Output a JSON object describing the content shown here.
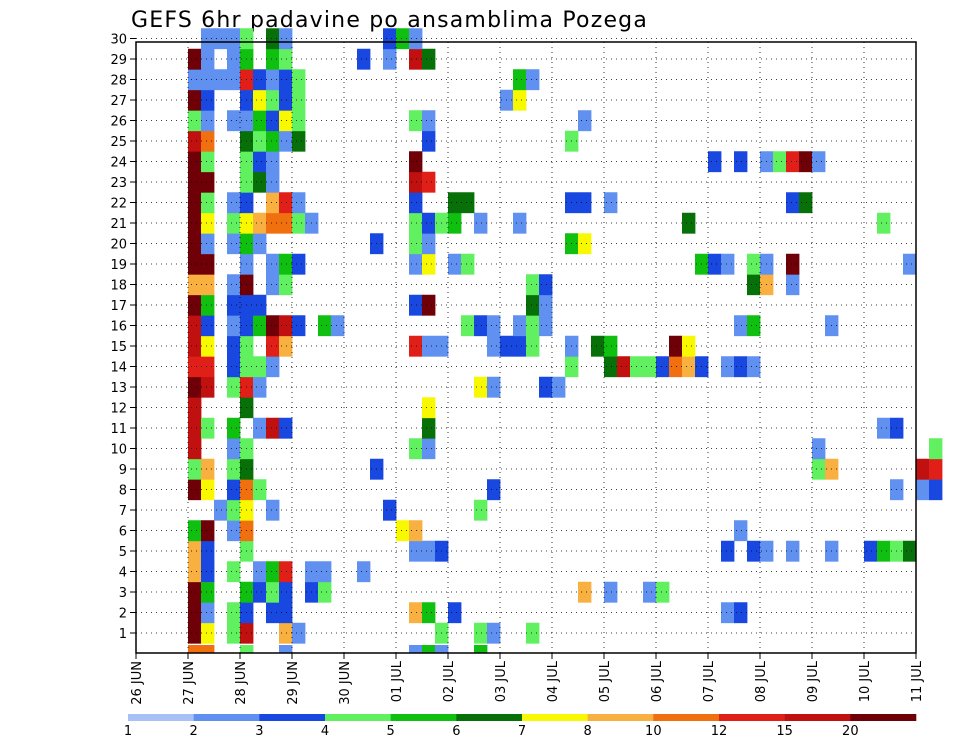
{
  "chart_data": {
    "type": "heatmap",
    "title": "GEFS 6hr padavine po ansamblima Pozega",
    "x_ticks": [
      "26 JUN",
      "27 JUN",
      "28 JUN",
      "29 JUN",
      "30 JUN",
      "01 JUL",
      "02 JUL",
      "03 JUL",
      "04 JUL",
      "05 JUL",
      "06 JUL",
      "07 JUL",
      "08 JUL",
      "09 JUL",
      "10 JUL",
      "11 JUL"
    ],
    "y_ticks": [
      "1",
      "2",
      "3",
      "4",
      "5",
      "6",
      "7",
      "8",
      "9",
      "10",
      "11",
      "12",
      "13",
      "14",
      "15",
      "16",
      "17",
      "18",
      "19",
      "20",
      "21",
      "22",
      "23",
      "24",
      "25",
      "26",
      "27",
      "28",
      "29",
      "30"
    ],
    "x_unit": "6-hour step from 26 JUN 00Z",
    "y_unit": "ensemble member",
    "grid": true,
    "levels": [
      {
        "label": "1",
        "color": "#a8c0f8"
      },
      {
        "label": "2",
        "color": "#6090f0"
      },
      {
        "label": "3",
        "color": "#1848e0"
      },
      {
        "label": "4",
        "color": "#60f060"
      },
      {
        "label": "5",
        "color": "#10c010"
      },
      {
        "label": "6",
        "color": "#087008"
      },
      {
        "label": "7",
        "color": "#f8f800"
      },
      {
        "label": "8",
        "color": "#f8b040"
      },
      {
        "label": "10",
        "color": "#f07010"
      },
      {
        "label": "12",
        "color": "#e02018"
      },
      {
        "label": "15",
        "color": "#c01010"
      },
      {
        "label": "20",
        "color": "#700008"
      }
    ],
    "cells": [
      [
        4,
        1,
        11
      ],
      [
        5,
        1,
        6
      ],
      [
        7,
        1,
        3
      ],
      [
        8,
        1,
        10
      ],
      [
        11,
        1,
        7
      ],
      [
        12,
        1,
        1
      ],
      [
        23,
        1,
        3
      ],
      [
        26,
        1,
        3
      ],
      [
        27,
        1,
        1
      ],
      [
        30,
        1,
        3
      ],
      [
        4,
        2,
        11
      ],
      [
        5,
        2,
        1
      ],
      [
        7,
        2,
        3
      ],
      [
        8,
        2,
        2
      ],
      [
        10,
        2,
        2
      ],
      [
        11,
        2,
        2
      ],
      [
        21,
        2,
        7
      ],
      [
        22,
        2,
        4
      ],
      [
        24,
        2,
        2
      ],
      [
        45,
        2,
        1
      ],
      [
        46,
        2,
        2
      ],
      [
        4,
        3,
        11
      ],
      [
        5,
        3,
        4
      ],
      [
        8,
        3,
        4
      ],
      [
        9,
        3,
        2
      ],
      [
        10,
        3,
        3
      ],
      [
        11,
        3,
        2
      ],
      [
        13,
        3,
        2
      ],
      [
        14,
        3,
        3
      ],
      [
        34,
        3,
        7
      ],
      [
        36,
        3,
        1
      ],
      [
        39,
        3,
        1
      ],
      [
        40,
        3,
        3
      ],
      [
        4,
        4,
        7
      ],
      [
        5,
        4,
        3
      ],
      [
        7,
        4,
        3
      ],
      [
        9,
        4,
        1
      ],
      [
        10,
        4,
        4
      ],
      [
        11,
        4,
        9
      ],
      [
        13,
        4,
        1
      ],
      [
        14,
        4,
        1
      ],
      [
        17,
        4,
        1
      ],
      [
        4,
        5,
        7
      ],
      [
        5,
        4,
        2
      ],
      [
        5,
        5,
        2
      ],
      [
        8,
        5,
        3
      ],
      [
        21,
        5,
        1
      ],
      [
        22,
        5,
        1
      ],
      [
        23,
        5,
        2
      ],
      [
        45,
        5,
        2
      ],
      [
        47,
        5,
        2
      ],
      [
        48,
        5,
        1
      ],
      [
        50,
        5,
        1
      ],
      [
        53,
        5,
        1
      ],
      [
        56,
        5,
        2
      ],
      [
        57,
        5,
        4
      ],
      [
        58,
        5,
        3
      ],
      [
        59,
        5,
        5
      ],
      [
        4,
        6,
        4
      ],
      [
        5,
        6,
        11
      ],
      [
        7,
        6,
        1
      ],
      [
        8,
        6,
        8
      ],
      [
        20,
        6,
        6
      ],
      [
        21,
        6,
        7
      ],
      [
        46,
        6,
        1
      ],
      [
        6,
        7,
        1
      ],
      [
        7,
        7,
        3
      ],
      [
        8,
        7,
        6
      ],
      [
        10,
        7,
        1
      ],
      [
        19,
        7,
        2
      ],
      [
        26,
        7,
        3
      ],
      [
        4,
        8,
        11
      ],
      [
        5,
        8,
        6
      ],
      [
        7,
        8,
        2
      ],
      [
        8,
        8,
        8
      ],
      [
        9,
        8,
        3
      ],
      [
        27,
        8,
        2
      ],
      [
        58,
        8,
        1
      ],
      [
        60,
        8,
        1
      ],
      [
        61,
        8,
        2
      ],
      [
        4,
        9,
        3
      ],
      [
        5,
        9,
        7
      ],
      [
        7,
        9,
        3
      ],
      [
        8,
        9,
        5
      ],
      [
        18,
        9,
        2
      ],
      [
        52,
        9,
        3
      ],
      [
        53,
        9,
        7
      ],
      [
        60,
        9,
        10
      ],
      [
        61,
        9,
        9
      ],
      [
        4,
        10,
        10
      ],
      [
        7,
        10,
        1
      ],
      [
        8,
        10,
        3
      ],
      [
        21,
        10,
        3
      ],
      [
        22,
        10,
        1
      ],
      [
        52,
        10,
        1
      ],
      [
        61,
        10,
        3
      ],
      [
        4,
        11,
        10
      ],
      [
        5,
        11,
        3
      ],
      [
        7,
        11,
        4
      ],
      [
        9,
        11,
        1
      ],
      [
        10,
        11,
        10
      ],
      [
        11,
        11,
        2
      ],
      [
        22,
        11,
        5
      ],
      [
        57,
        11,
        1
      ],
      [
        58,
        11,
        2
      ],
      [
        4,
        12,
        10
      ],
      [
        8,
        12,
        5
      ],
      [
        22,
        12,
        6
      ],
      [
        4,
        13,
        11
      ],
      [
        5,
        13,
        10
      ],
      [
        7,
        13,
        3
      ],
      [
        8,
        13,
        9
      ],
      [
        9,
        13,
        1
      ],
      [
        26,
        13,
        6
      ],
      [
        27,
        13,
        1
      ],
      [
        31,
        13,
        2
      ],
      [
        32,
        13,
        1
      ],
      [
        4,
        14,
        9
      ],
      [
        5,
        14,
        9
      ],
      [
        7,
        14,
        2
      ],
      [
        8,
        14,
        3
      ],
      [
        9,
        14,
        3
      ],
      [
        10,
        14,
        1
      ],
      [
        33,
        14,
        3
      ],
      [
        36,
        14,
        5
      ],
      [
        37,
        14,
        10
      ],
      [
        38,
        14,
        3
      ],
      [
        39,
        14,
        3
      ],
      [
        40,
        14,
        2
      ],
      [
        41,
        14,
        8
      ],
      [
        42,
        14,
        7
      ],
      [
        43,
        14,
        2
      ],
      [
        45,
        14,
        1
      ],
      [
        46,
        14,
        2
      ],
      [
        47,
        14,
        1
      ],
      [
        4,
        15,
        10
      ],
      [
        5,
        15,
        6
      ],
      [
        7,
        15,
        2
      ],
      [
        8,
        15,
        3
      ],
      [
        10,
        15,
        9
      ],
      [
        11,
        15,
        7
      ],
      [
        21,
        15,
        9
      ],
      [
        22,
        15,
        1
      ],
      [
        23,
        15,
        1
      ],
      [
        27,
        15,
        1
      ],
      [
        28,
        15,
        2
      ],
      [
        29,
        15,
        2
      ],
      [
        30,
        15,
        3
      ],
      [
        33,
        15,
        1
      ],
      [
        35,
        15,
        5
      ],
      [
        36,
        15,
        4
      ],
      [
        41,
        15,
        11
      ],
      [
        42,
        15,
        6
      ],
      [
        4,
        16,
        10
      ],
      [
        5,
        16,
        2
      ],
      [
        7,
        16,
        1
      ],
      [
        8,
        16,
        2
      ],
      [
        9,
        16,
        4
      ],
      [
        10,
        16,
        11
      ],
      [
        11,
        16,
        10
      ],
      [
        12,
        16,
        2
      ],
      [
        14,
        16,
        4
      ],
      [
        15,
        16,
        1
      ],
      [
        25,
        16,
        3
      ],
      [
        26,
        16,
        2
      ],
      [
        27,
        16,
        1
      ],
      [
        29,
        16,
        1
      ],
      [
        30,
        16,
        3
      ],
      [
        31,
        16,
        1
      ],
      [
        46,
        16,
        1
      ],
      [
        47,
        16,
        4
      ],
      [
        53,
        16,
        1
      ],
      [
        4,
        17,
        11
      ],
      [
        5,
        17,
        4
      ],
      [
        7,
        17,
        2
      ],
      [
        8,
        17,
        2
      ],
      [
        9,
        17,
        2
      ],
      [
        21,
        17,
        2
      ],
      [
        22,
        17,
        11
      ],
      [
        30,
        17,
        5
      ],
      [
        31,
        17,
        1
      ],
      [
        4,
        18,
        7
      ],
      [
        5,
        18,
        7
      ],
      [
        7,
        18,
        1
      ],
      [
        8,
        18,
        11
      ],
      [
        10,
        18,
        1
      ],
      [
        11,
        18,
        3
      ],
      [
        30,
        18,
        3
      ],
      [
        31,
        18,
        2
      ],
      [
        47,
        18,
        5
      ],
      [
        48,
        18,
        7
      ],
      [
        50,
        18,
        1
      ],
      [
        4,
        19,
        11
      ],
      [
        5,
        19,
        11
      ],
      [
        8,
        19,
        1
      ],
      [
        10,
        19,
        1
      ],
      [
        11,
        19,
        4
      ],
      [
        12,
        19,
        2
      ],
      [
        21,
        19,
        1
      ],
      [
        22,
        19,
        6
      ],
      [
        24,
        19,
        1
      ],
      [
        25,
        19,
        3
      ],
      [
        43,
        19,
        4
      ],
      [
        44,
        19,
        2
      ],
      [
        45,
        19,
        1
      ],
      [
        47,
        19,
        3
      ],
      [
        48,
        19,
        1
      ],
      [
        50,
        19,
        11
      ],
      [
        59,
        19,
        1
      ],
      [
        4,
        20,
        11
      ],
      [
        5,
        20,
        1
      ],
      [
        7,
        20,
        1
      ],
      [
        8,
        20,
        4
      ],
      [
        9,
        20,
        1
      ],
      [
        18,
        20,
        2
      ],
      [
        21,
        20,
        3
      ],
      [
        22,
        20,
        1
      ],
      [
        33,
        20,
        4
      ],
      [
        34,
        20,
        6
      ],
      [
        4,
        21,
        11
      ],
      [
        5,
        21,
        6
      ],
      [
        7,
        21,
        3
      ],
      [
        8,
        21,
        6
      ],
      [
        9,
        21,
        7
      ],
      [
        10,
        21,
        8
      ],
      [
        11,
        21,
        8
      ],
      [
        12,
        21,
        3
      ],
      [
        13,
        21,
        1
      ],
      [
        21,
        21,
        3
      ],
      [
        22,
        21,
        2
      ],
      [
        23,
        21,
        3
      ],
      [
        24,
        21,
        4
      ],
      [
        26,
        21,
        1
      ],
      [
        29,
        21,
        1
      ],
      [
        42,
        21,
        5
      ],
      [
        57,
        21,
        3
      ],
      [
        4,
        22,
        11
      ],
      [
        5,
        22,
        3
      ],
      [
        7,
        22,
        1
      ],
      [
        8,
        22,
        2
      ],
      [
        10,
        22,
        7
      ],
      [
        11,
        22,
        9
      ],
      [
        12,
        22,
        1
      ],
      [
        21,
        22,
        2
      ],
      [
        24,
        22,
        5
      ],
      [
        25,
        22,
        5
      ],
      [
        33,
        22,
        2
      ],
      [
        34,
        22,
        2
      ],
      [
        36,
        22,
        1
      ],
      [
        50,
        22,
        2
      ],
      [
        51,
        22,
        5
      ],
      [
        4,
        23,
        11
      ],
      [
        5,
        23,
        11
      ],
      [
        8,
        23,
        3
      ],
      [
        9,
        23,
        5
      ],
      [
        10,
        23,
        1
      ],
      [
        21,
        23,
        10
      ],
      [
        22,
        23,
        9
      ],
      [
        4,
        24,
        11
      ],
      [
        5,
        24,
        3
      ],
      [
        8,
        24,
        3
      ],
      [
        9,
        24,
        2
      ],
      [
        10,
        24,
        1
      ],
      [
        21,
        24,
        11
      ],
      [
        44,
        24,
        2
      ],
      [
        46,
        24,
        2
      ],
      [
        48,
        24,
        1
      ],
      [
        49,
        24,
        3
      ],
      [
        50,
        24,
        9
      ],
      [
        51,
        24,
        11
      ],
      [
        52,
        24,
        1
      ],
      [
        4,
        25,
        10
      ],
      [
        5,
        25,
        8
      ],
      [
        8,
        25,
        5
      ],
      [
        9,
        25,
        3
      ],
      [
        10,
        25,
        4
      ],
      [
        11,
        25,
        1
      ],
      [
        12,
        25,
        5
      ],
      [
        22,
        25,
        2
      ],
      [
        33,
        25,
        3
      ],
      [
        4,
        26,
        3
      ],
      [
        5,
        26,
        1
      ],
      [
        7,
        26,
        1
      ],
      [
        8,
        26,
        1
      ],
      [
        9,
        26,
        4
      ],
      [
        10,
        26,
        2
      ],
      [
        11,
        26,
        6
      ],
      [
        12,
        26,
        3
      ],
      [
        21,
        26,
        3
      ],
      [
        22,
        26,
        1
      ],
      [
        34,
        26,
        1
      ],
      [
        4,
        27,
        11
      ],
      [
        5,
        27,
        2
      ],
      [
        8,
        27,
        2
      ],
      [
        9,
        27,
        6
      ],
      [
        10,
        27,
        3
      ],
      [
        11,
        27,
        2
      ],
      [
        12,
        27,
        3
      ],
      [
        28,
        27,
        1
      ],
      [
        29,
        27,
        6
      ],
      [
        4,
        28,
        1
      ],
      [
        5,
        28,
        1
      ],
      [
        6,
        28,
        1
      ],
      [
        7,
        28,
        1
      ],
      [
        8,
        28,
        9
      ],
      [
        9,
        28,
        2
      ],
      [
        10,
        28,
        1
      ],
      [
        11,
        28,
        2
      ],
      [
        12,
        28,
        3
      ],
      [
        29,
        28,
        4
      ],
      [
        30,
        28,
        1
      ],
      [
        4,
        29,
        11
      ],
      [
        5,
        29,
        1
      ],
      [
        7,
        29,
        1
      ],
      [
        8,
        29,
        4
      ],
      [
        10,
        29,
        4
      ],
      [
        11,
        29,
        3
      ],
      [
        17,
        29,
        2
      ],
      [
        19,
        29,
        1
      ],
      [
        21,
        29,
        10
      ],
      [
        22,
        29,
        5
      ],
      [
        5,
        30,
        1
      ],
      [
        6,
        30,
        1
      ],
      [
        7,
        30,
        1
      ],
      [
        8,
        30,
        3
      ],
      [
        10,
        30,
        5
      ],
      [
        11,
        30,
        1
      ],
      [
        19,
        30,
        2
      ],
      [
        20,
        30,
        4
      ],
      [
        21,
        30,
        1
      ],
      [
        4,
        0,
        8
      ],
      [
        5,
        0,
        8
      ],
      [
        8,
        0,
        3
      ],
      [
        11,
        0,
        1
      ],
      [
        21,
        0,
        1
      ],
      [
        22,
        0,
        4
      ],
      [
        23,
        0,
        1
      ],
      [
        26,
        0,
        4
      ]
    ]
  }
}
